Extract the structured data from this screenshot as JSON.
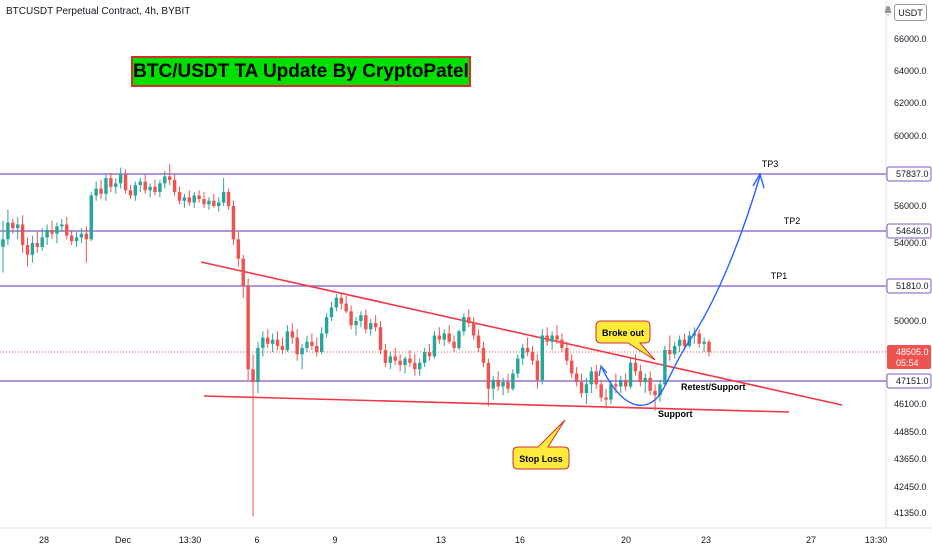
{
  "header": {
    "symbol_title": "BTCUSDT Perpetual Contract, 4h, BYBIT",
    "currency": "USDT"
  },
  "banner": {
    "text": "BTC/USDT TA Update By CryptoPatel",
    "background": "#00e000",
    "border": "#d32f2f"
  },
  "colors": {
    "up_candle": "#26a69a",
    "down_candle": "#ef5350",
    "level_line": "#7e57c2",
    "trendline": "#f23645",
    "projection": "#2962ff",
    "callout_fill": "#ffeb3b",
    "callout_border": "#d32f2f",
    "current_price": "#ef5350"
  },
  "chart_data": {
    "type": "candlestick",
    "symbol": "BTCUSDT",
    "timeframe": "4h",
    "exchange": "BYBIT",
    "y_axis_ticks": [
      66000.0,
      64000.0,
      62000.0,
      60000.0,
      56000.0,
      54000.0,
      50000.0,
      46100.0,
      44850.0,
      43650.0,
      42450.0,
      41350.0
    ],
    "x_axis_ticks": [
      "28",
      "Dec",
      "13:30",
      "6",
      "9",
      "13",
      "16",
      "20",
      "23",
      "27",
      "13:30"
    ],
    "levels": [
      {
        "label": "TP3",
        "price": "57837.0",
        "value": 57837.0
      },
      {
        "label": "TP2",
        "price": "54646.0",
        "value": 54646.0
      },
      {
        "label": "TP1",
        "price": "51810.0",
        "value": 51810.0
      },
      {
        "label": "",
        "price": "47151.0",
        "value": 47151.0
      }
    ],
    "current_price": {
      "value": "48505.0",
      "countdown": "05:54"
    },
    "annotations": {
      "breakout": "Broke out",
      "retest": "Retest/Support",
      "support": "Support",
      "stop_loss": "Stop Loss"
    },
    "candles": [
      [
        53800,
        55200,
        52500,
        54200
      ],
      [
        54200,
        55800,
        53900,
        55100
      ],
      [
        55100,
        55300,
        54500,
        54800
      ],
      [
        54800,
        55400,
        54200,
        55000
      ],
      [
        55000,
        55500,
        53500,
        53900
      ],
      [
        53900,
        54300,
        52800,
        53400
      ],
      [
        53400,
        54400,
        53000,
        54000
      ],
      [
        54000,
        54600,
        53500,
        53800
      ],
      [
        53800,
        54800,
        53600,
        54300
      ],
      [
        54300,
        55000,
        53900,
        54700
      ],
      [
        54700,
        55200,
        54200,
        54500
      ],
      [
        54500,
        55100,
        54000,
        54900
      ],
      [
        54900,
        55300,
        54600,
        55000
      ],
      [
        55000,
        55400,
        54200,
        54400
      ],
      [
        54400,
        54700,
        53900,
        54100
      ],
      [
        54100,
        54600,
        53800,
        54300
      ],
      [
        54300,
        54800,
        54000,
        54500
      ],
      [
        54500,
        54900,
        53000,
        54200
      ],
      [
        54200,
        56800,
        54100,
        56600
      ],
      [
        56600,
        57400,
        56300,
        57000
      ],
      [
        57000,
        57500,
        56400,
        56700
      ],
      [
        56700,
        57800,
        56300,
        57600
      ],
      [
        57600,
        57900,
        56800,
        57100
      ],
      [
        57100,
        57600,
        56700,
        57300
      ],
      [
        57300,
        58200,
        57000,
        57800
      ],
      [
        57800,
        58100,
        56700,
        56900
      ],
      [
        56900,
        57200,
        56400,
        56600
      ],
      [
        56600,
        57400,
        56300,
        57200
      ],
      [
        57200,
        57600,
        56800,
        57400
      ],
      [
        57400,
        57800,
        56700,
        56900
      ],
      [
        56900,
        57300,
        56500,
        57100
      ],
      [
        57100,
        57500,
        56600,
        56800
      ],
      [
        56800,
        57500,
        56500,
        57300
      ],
      [
        57300,
        58000,
        57000,
        57700
      ],
      [
        57700,
        58400,
        57200,
        57500
      ],
      [
        57500,
        57800,
        56600,
        56800
      ],
      [
        56800,
        57100,
        56100,
        56300
      ],
      [
        56300,
        56700,
        55900,
        56500
      ],
      [
        56500,
        56900,
        56000,
        56200
      ],
      [
        56200,
        56800,
        55900,
        56600
      ],
      [
        56600,
        56900,
        56200,
        56400
      ],
      [
        56400,
        56800,
        55900,
        56100
      ],
      [
        56100,
        56500,
        55800,
        56300
      ],
      [
        56300,
        56700,
        55900,
        56000
      ],
      [
        56000,
        56500,
        55700,
        56200
      ],
      [
        56200,
        57600,
        56000,
        56800
      ],
      [
        56800,
        57000,
        55800,
        56000
      ],
      [
        56000,
        56300,
        53900,
        54200
      ],
      [
        54200,
        54600,
        52800,
        53200
      ],
      [
        53200,
        53400,
        51200,
        51800
      ],
      [
        51800,
        52200,
        47200,
        47700
      ],
      [
        47700,
        48400,
        41200,
        47100
      ],
      [
        47100,
        49000,
        46600,
        48700
      ],
      [
        48700,
        49500,
        48300,
        49200
      ],
      [
        49200,
        49600,
        48700,
        48900
      ],
      [
        48900,
        49400,
        48500,
        49100
      ],
      [
        49100,
        49500,
        48600,
        48800
      ],
      [
        48800,
        49200,
        48400,
        48600
      ],
      [
        48600,
        49800,
        48500,
        49500
      ],
      [
        49500,
        49900,
        48900,
        49200
      ],
      [
        49200,
        49600,
        48100,
        48400
      ],
      [
        48400,
        48900,
        47700,
        48700
      ],
      [
        48700,
        49300,
        48500,
        49000
      ],
      [
        49000,
        49400,
        48600,
        48800
      ],
      [
        48800,
        49200,
        48300,
        48500
      ],
      [
        48500,
        49700,
        48400,
        49400
      ],
      [
        49400,
        50400,
        49200,
        50200
      ],
      [
        50200,
        51000,
        50000,
        50700
      ],
      [
        50700,
        51400,
        50500,
        51200
      ],
      [
        51200,
        51500,
        50600,
        50900
      ],
      [
        50900,
        51300,
        50400,
        50500
      ],
      [
        50500,
        50800,
        49600,
        49800
      ],
      [
        49800,
        50200,
        49300,
        50000
      ],
      [
        50000,
        50500,
        49700,
        50300
      ],
      [
        50300,
        50600,
        49400,
        49600
      ],
      [
        49600,
        50100,
        49300,
        49900
      ],
      [
        49900,
        50300,
        49500,
        49700
      ],
      [
        49700,
        50000,
        48400,
        48600
      ],
      [
        48600,
        48900,
        47800,
        48000
      ],
      [
        48000,
        48500,
        47700,
        48300
      ],
      [
        48300,
        48700,
        47900,
        48100
      ],
      [
        48100,
        48400,
        47600,
        47900
      ],
      [
        47900,
        48300,
        47500,
        48200
      ],
      [
        48200,
        48600,
        47800,
        48000
      ],
      [
        48000,
        48400,
        47400,
        47700
      ],
      [
        47700,
        48200,
        47400,
        48000
      ],
      [
        48000,
        48700,
        47800,
        48500
      ],
      [
        48500,
        48900,
        48100,
        48300
      ],
      [
        48300,
        49500,
        48200,
        49300
      ],
      [
        49300,
        49700,
        48900,
        49100
      ],
      [
        49100,
        49600,
        48800,
        49400
      ],
      [
        49400,
        49800,
        48900,
        49000
      ],
      [
        49000,
        49300,
        48500,
        48700
      ],
      [
        48700,
        49600,
        48600,
        49500
      ],
      [
        49500,
        50400,
        49300,
        50200
      ],
      [
        50200,
        50600,
        49700,
        49900
      ],
      [
        49900,
        50200,
        49100,
        49300
      ],
      [
        49300,
        49600,
        48500,
        48700
      ],
      [
        48700,
        49000,
        47800,
        48000
      ],
      [
        48000,
        48200,
        46000,
        46800
      ],
      [
        46800,
        47400,
        46300,
        47200
      ],
      [
        47200,
        47600,
        46700,
        46900
      ],
      [
        46900,
        47300,
        46500,
        47100
      ],
      [
        47100,
        47500,
        46600,
        46800
      ],
      [
        46800,
        47700,
        46700,
        47500
      ],
      [
        47500,
        48400,
        47300,
        48200
      ],
      [
        48200,
        48900,
        47900,
        48700
      ],
      [
        48700,
        49200,
        48300,
        48500
      ],
      [
        48500,
        48800,
        47900,
        48100
      ],
      [
        48100,
        48400,
        46800,
        47200
      ],
      [
        47200,
        49600,
        47000,
        49300
      ],
      [
        49300,
        49700,
        48800,
        49000
      ],
      [
        49000,
        49500,
        48600,
        49300
      ],
      [
        49300,
        49800,
        48900,
        49100
      ],
      [
        49100,
        49400,
        48500,
        48700
      ],
      [
        48700,
        49000,
        47900,
        48100
      ],
      [
        48100,
        48400,
        47300,
        47500
      ],
      [
        47500,
        47800,
        46900,
        47100
      ],
      [
        47100,
        47500,
        46400,
        46600
      ],
      [
        46600,
        47300,
        46100,
        47000
      ],
      [
        47000,
        47800,
        46600,
        47600
      ],
      [
        47600,
        47900,
        46800,
        47000
      ],
      [
        47000,
        47200,
        46200,
        46400
      ],
      [
        46400,
        46800,
        45900,
        46300
      ],
      [
        46300,
        47200,
        46100,
        47000
      ],
      [
        47000,
        47500,
        46600,
        46900
      ],
      [
        46900,
        47400,
        46600,
        47200
      ],
      [
        47200,
        47500,
        46700,
        46900
      ],
      [
        46900,
        48200,
        46800,
        48000
      ],
      [
        48000,
        48400,
        47400,
        47600
      ],
      [
        47600,
        47900,
        46900,
        47100
      ],
      [
        47100,
        47500,
        46600,
        47300
      ],
      [
        47300,
        47600,
        46500,
        46700
      ],
      [
        46700,
        47000,
        45800,
        46500
      ],
      [
        46500,
        47200,
        46200,
        47000
      ],
      [
        47000,
        48800,
        46900,
        48600
      ],
      [
        48600,
        49300,
        48100,
        48400
      ],
      [
        48400,
        49000,
        48200,
        48800
      ],
      [
        48800,
        49300,
        48500,
        49100
      ],
      [
        49100,
        49400,
        48600,
        48800
      ],
      [
        48800,
        49500,
        48700,
        49300
      ],
      [
        49300,
        49700,
        48900,
        49400
      ],
      [
        49400,
        49600,
        48700,
        48900
      ],
      [
        48900,
        49200,
        48500,
        49000
      ],
      [
        49000,
        49100,
        48300,
        48500
      ]
    ]
  }
}
